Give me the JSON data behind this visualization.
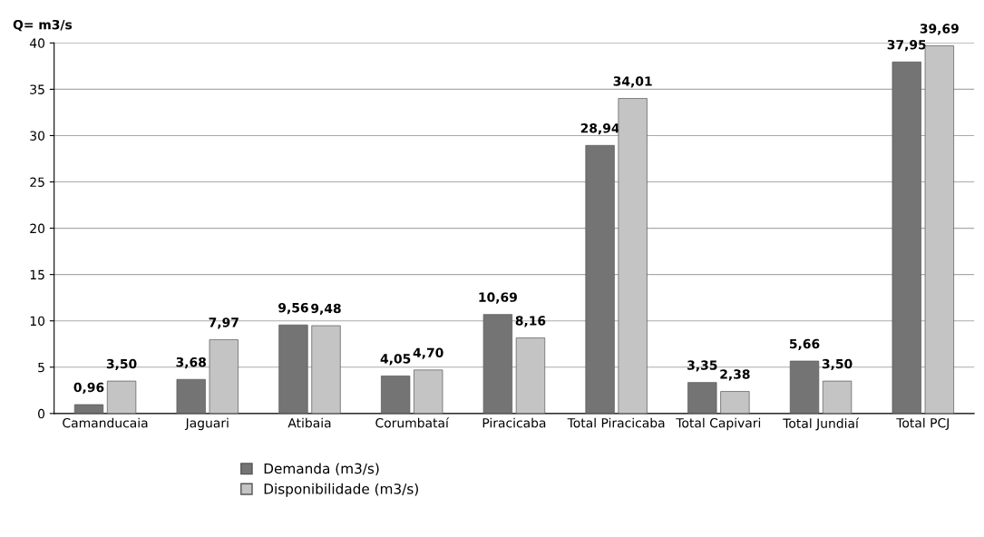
{
  "chart_data": {
    "type": "bar",
    "ylabel": "Q= m3/s",
    "categories": [
      "Camanducaia",
      "Jaguari",
      "Atibaia",
      "Corumbataí",
      "Piracicaba",
      "Total Piracicaba",
      "Total Capivari",
      "Total Jundiaí",
      "Total PCJ"
    ],
    "series": [
      {
        "name": "Demanda (m3/s)",
        "color": "#747474",
        "values": [
          0.96,
          3.68,
          9.56,
          4.05,
          10.69,
          28.94,
          3.35,
          5.66,
          37.95
        ],
        "value_labels": [
          "0,96",
          "3,68",
          "9,56",
          "4,05",
          "10,69",
          "28,94",
          "3,35",
          "5,66",
          "37,95"
        ]
      },
      {
        "name": "Disponibilidade (m3/s)",
        "color": "#c4c4c4",
        "values": [
          3.5,
          7.97,
          9.48,
          4.7,
          8.16,
          34.01,
          2.38,
          3.5,
          39.69
        ],
        "value_labels": [
          "3,50",
          "7,97",
          "9,48",
          "4,70",
          "8,16",
          "34,01",
          "2,38",
          "3,50",
          "39,69"
        ]
      }
    ],
    "ylim": [
      0,
      40
    ],
    "yticks": [
      0,
      5,
      10,
      15,
      20,
      25,
      30,
      35,
      40
    ],
    "grid": "y",
    "legend": "bottom"
  }
}
